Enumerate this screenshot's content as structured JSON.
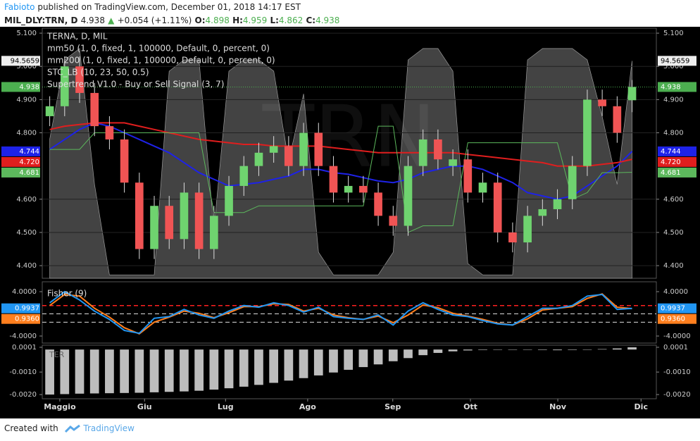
{
  "header": {
    "author": "Fabioto",
    "published": "published on TradingView.com, December 01, 2018 14:17 EST",
    "symbol": "MIL_DLY:TRN, D",
    "last": "4.938",
    "change": "+0.054 (+1.11%)",
    "open_label": "O:",
    "open": "4.898",
    "high_label": "H:",
    "high": "4.959",
    "low_label": "L:",
    "low": "4.862",
    "close_label": "C:",
    "close": "4.938"
  },
  "footer": {
    "created": "Created with",
    "brand": "TradingView"
  },
  "chart_data": [
    {
      "type": "candlestick",
      "watermark": "TRN",
      "legend": [
        "TERNA, D, MIL",
        "mm50 (1, 0, fixed, 1, 100000, Default, 0, percent, 0)",
        "mm200 (1, 0, fixed, 1, 100000, Default, 0, percent, 0)",
        "STC_LB (10, 23, 50, 0.5)",
        "Supertrend V1.0 - Buy or Sell Signal (3, 7)"
      ],
      "x": [
        2,
        6,
        10,
        14,
        18,
        22,
        26,
        30,
        34,
        38,
        42,
        46,
        50,
        54,
        58,
        62,
        66,
        70,
        74,
        78,
        82,
        86,
        90,
        94,
        98,
        102,
        106,
        110,
        114,
        118,
        122,
        126,
        130,
        134,
        138,
        142,
        146,
        150,
        154,
        158
      ],
      "xlim": [
        0,
        164.5
      ],
      "xticks": [
        {
          "value": 4.7,
          "label": "Maggio"
        },
        {
          "value": 27.4,
          "label": "Giu"
        },
        {
          "value": 49.1,
          "label": "Lug"
        },
        {
          "value": 71.1,
          "label": "Ago"
        },
        {
          "value": 93.9,
          "label": "Sep"
        },
        {
          "value": 114.7,
          "label": "Ott"
        },
        {
          "value": 138.1,
          "label": "Nov"
        },
        {
          "value": 160.4,
          "label": "Dic"
        }
      ],
      "open": [
        4.85,
        4.88,
        5.0,
        4.92,
        4.82,
        4.78,
        4.65,
        4.45,
        4.58,
        4.48,
        4.62,
        4.45,
        4.55,
        4.64,
        4.7,
        4.74,
        4.76,
        4.7,
        4.8,
        4.7,
        4.62,
        4.64,
        4.62,
        4.55,
        4.52,
        4.7,
        4.78,
        4.7,
        4.72,
        4.62,
        4.65,
        4.5,
        4.47,
        4.55,
        4.57,
        4.6,
        4.7,
        4.9,
        4.88,
        4.898
      ],
      "high": [
        4.91,
        5.03,
        5.03,
        4.95,
        4.85,
        4.81,
        4.68,
        4.61,
        4.61,
        4.65,
        4.65,
        4.58,
        4.67,
        4.73,
        4.77,
        4.79,
        4.79,
        4.83,
        4.83,
        4.73,
        4.67,
        4.67,
        4.65,
        4.58,
        4.73,
        4.81,
        4.81,
        4.75,
        4.75,
        4.68,
        4.68,
        4.53,
        4.58,
        4.6,
        4.63,
        4.73,
        4.93,
        4.93,
        4.91,
        4.959
      ],
      "low": [
        4.82,
        4.85,
        4.89,
        4.79,
        4.75,
        4.62,
        4.42,
        4.42,
        4.45,
        4.45,
        4.42,
        4.42,
        4.52,
        4.61,
        4.67,
        4.71,
        4.67,
        4.67,
        4.67,
        4.59,
        4.59,
        4.59,
        4.52,
        4.49,
        4.49,
        4.67,
        4.69,
        4.67,
        4.59,
        4.59,
        4.47,
        4.44,
        4.44,
        4.52,
        4.54,
        4.57,
        4.67,
        4.85,
        4.77,
        4.862
      ],
      "close": [
        4.88,
        5.0,
        4.92,
        4.82,
        4.78,
        4.65,
        4.45,
        4.58,
        4.48,
        4.62,
        4.45,
        4.55,
        4.64,
        4.7,
        4.74,
        4.76,
        4.7,
        4.8,
        4.7,
        4.62,
        4.64,
        4.62,
        4.55,
        4.52,
        4.7,
        4.78,
        4.72,
        4.72,
        4.62,
        4.65,
        4.5,
        4.47,
        4.55,
        4.57,
        4.6,
        4.7,
        4.9,
        4.88,
        4.8,
        4.938
      ],
      "up_color": "#6fd36f",
      "down_color": "#f05454",
      "series": [
        {
          "name": "mm50",
          "color": "#1e22e8",
          "values": [
            4.75,
            4.78,
            4.81,
            4.83,
            4.82,
            4.8,
            4.78,
            4.76,
            4.74,
            4.71,
            4.68,
            4.66,
            4.64,
            4.645,
            4.65,
            4.66,
            4.67,
            4.69,
            4.69,
            4.68,
            4.675,
            4.665,
            4.655,
            4.65,
            4.66,
            4.68,
            4.69,
            4.7,
            4.7,
            4.69,
            4.67,
            4.65,
            4.62,
            4.61,
            4.6,
            4.61,
            4.64,
            4.67,
            4.7,
            4.744
          ]
        },
        {
          "name": "mm200",
          "color": "#e01e1e",
          "values": [
            4.81,
            4.82,
            4.825,
            4.83,
            4.83,
            4.83,
            4.82,
            4.81,
            4.8,
            4.79,
            4.78,
            4.775,
            4.77,
            4.765,
            4.765,
            4.76,
            4.76,
            4.76,
            4.76,
            4.755,
            4.75,
            4.745,
            4.74,
            4.74,
            4.74,
            4.74,
            4.74,
            4.74,
            4.735,
            4.73,
            4.725,
            4.72,
            4.715,
            4.71,
            4.7,
            4.7,
            4.7,
            4.705,
            4.71,
            4.72
          ]
        },
        {
          "name": "Supertrend",
          "color": "#5cb85c",
          "values": [
            4.75,
            4.75,
            4.75,
            4.8,
            4.8,
            4.8,
            4.8,
            4.8,
            4.8,
            4.8,
            4.8,
            4.56,
            4.56,
            4.56,
            4.58,
            4.58,
            4.58,
            4.58,
            4.58,
            4.58,
            4.58,
            4.58,
            4.82,
            4.82,
            4.5,
            4.52,
            4.52,
            4.52,
            4.77,
            4.77,
            4.77,
            4.77,
            4.77,
            4.77,
            4.77,
            4.6,
            4.62,
            4.68,
            4.68,
            4.681
          ]
        }
      ],
      "stc": {
        "color": "#5a5a5a",
        "ylim": [
          -1.5,
          109
        ],
        "values": [
          60,
          95,
          100,
          40,
          0,
          0,
          0,
          0,
          90,
          95,
          95,
          20,
          90,
          95,
          95,
          90,
          50,
          80,
          10,
          0,
          0,
          0,
          0,
          10,
          95,
          100,
          100,
          90,
          5,
          0,
          0,
          0,
          95,
          100,
          100,
          100,
          95,
          70,
          40,
          94.5659
        ],
        "tag": 94.5659
      },
      "ylim": [
        4.362,
        5.115
      ],
      "yticks": [
        {
          "value": 4.4,
          "label": "4.400"
        },
        {
          "value": 4.5,
          "label": "4.500"
        },
        {
          "value": 4.6,
          "label": "4.600"
        },
        {
          "value": 4.8,
          "label": "4.800"
        },
        {
          "value": 4.9,
          "label": "4.900"
        },
        {
          "value": 5.0,
          "label": "5.000"
        },
        {
          "value": 5.1,
          "label": "5.100"
        }
      ],
      "last_line": {
        "value": 4.938,
        "color": "#4caf50"
      },
      "tags": [
        {
          "value": 4.938,
          "color": "#4caf50"
        },
        {
          "value": 4.744,
          "color": "#1e22e8"
        },
        {
          "value": 4.72,
          "label": "4.720",
          "color": "#e01e1e"
        },
        {
          "value": 4.681,
          "color": "#5cb85c"
        }
      ]
    },
    {
      "type": "line",
      "title": "Fisher (9)",
      "series": [
        {
          "name": "Fisher",
          "color": "#2196f3",
          "values": [
            2.0,
            4.0,
            2.5,
            0.5,
            -1.0,
            -3.0,
            -3.5,
            -0.8,
            -0.5,
            0.8,
            -0.2,
            -0.8,
            0.5,
            1.5,
            1.2,
            2.0,
            1.5,
            0.3,
            1.2,
            -0.5,
            -0.8,
            -1.0,
            -0.2,
            -2.0,
            0.5,
            2.0,
            0.8,
            -0.2,
            -0.5,
            -1.2,
            -1.8,
            -2.0,
            -0.5,
            1.0,
            1.0,
            1.5,
            3.2,
            3.5,
            0.8,
            0.9937
          ]
        },
        {
          "name": "Trigger",
          "color": "#ff7f1e",
          "values": [
            1.5,
            3.5,
            3.2,
            1.0,
            -0.6,
            -2.5,
            -3.6,
            -1.5,
            -0.6,
            0.5,
            0.1,
            -0.7,
            0.2,
            1.3,
            1.3,
            1.8,
            1.7,
            0.5,
            1.0,
            -0.2,
            -0.7,
            -1.0,
            -0.4,
            -1.6,
            -0.2,
            1.6,
            1.1,
            0.1,
            -0.4,
            -1.0,
            -1.7,
            -2.0,
            -0.9,
            0.7,
            1.0,
            1.3,
            2.8,
            3.6,
            1.2,
            0.936
          ]
        }
      ],
      "levels": [
        {
          "value": 1.5,
          "color": "#ff2020"
        },
        {
          "value": 0,
          "color": "#dddddd"
        },
        {
          "value": -1.5,
          "color": "#dddddd"
        }
      ],
      "ylim": [
        -5.27,
        5.78
      ],
      "yticks": [
        {
          "value": 4,
          "label": "4.0000"
        },
        {
          "value": -4,
          "label": "-4.0000"
        }
      ],
      "tags": [
        {
          "value": 0.9937,
          "color": "#2196f3"
        },
        {
          "value": 0.936,
          "label": "0.9360",
          "color": "#ff7f1e"
        }
      ]
    },
    {
      "type": "bar",
      "title": "TER",
      "color": "#bdbdbd",
      "values": [
        -0.002,
        -0.00198,
        -0.00196,
        -0.00195,
        -0.00194,
        -0.00193,
        -0.00192,
        -0.0019,
        -0.00188,
        -0.00186,
        -0.00183,
        -0.00178,
        -0.00172,
        -0.00165,
        -0.00157,
        -0.00148,
        -0.00138,
        -0.00127,
        -0.00115,
        -0.00102,
        -0.0009,
        -0.00078,
        -0.00066,
        -0.00052,
        -0.00038,
        -0.00025,
        -0.00015,
        -8e-05,
        -4e-05,
        -2e-05,
        -1e-05,
        0,
        -1e-05,
        -2e-05,
        -3e-05,
        -2e-05,
        -1e-05,
        2e-05,
        5e-05,
        0.0001
      ],
      "ylim": [
        -0.002185,
        0.000193
      ],
      "yticks": [
        0.0001,
        {
          "value": -0.001,
          "label": "-0.0010"
        },
        {
          "value": -0.002,
          "label": "-0.0020"
        }
      ]
    }
  ]
}
